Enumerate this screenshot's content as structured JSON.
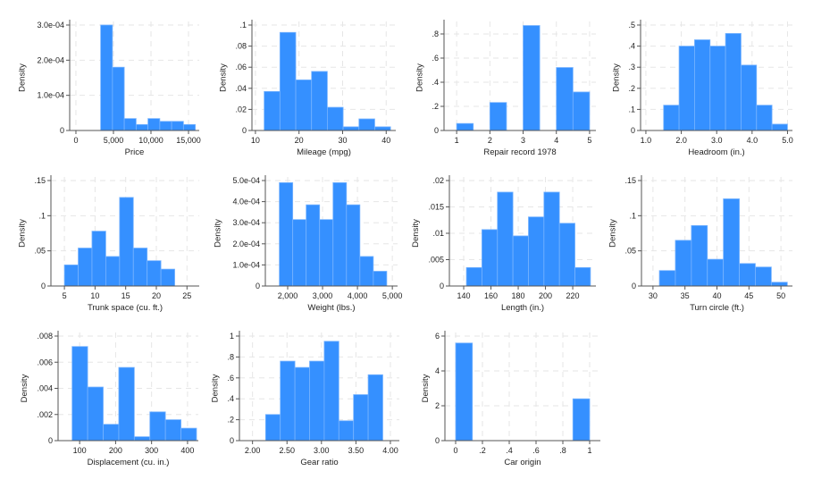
{
  "chart_data": [
    {
      "type": "bar",
      "xlabel": "Price",
      "ylabel": "Density",
      "bin_start": 3291,
      "bin_width": 1577,
      "densities": [
        0.0003,
        0.00018,
        3.4e-05,
        1.7e-05,
        3.4e-05,
        2.6e-05,
        2.6e-05,
        1.7e-05
      ],
      "xlim": [
        -830,
        16430
      ],
      "ylim": [
        0,
        0.0003
      ],
      "xticks": [
        {
          "v": 0,
          "label": "0"
        },
        {
          "v": 5000,
          "label": "5,000"
        },
        {
          "v": 10000,
          "label": "10,000"
        },
        {
          "v": 15000,
          "label": "15,000"
        }
      ],
      "yticks": [
        {
          "v": 0,
          "label": "0"
        },
        {
          "v": 0.0001,
          "label": "1.0e-04"
        },
        {
          "v": 0.0002,
          "label": "2.0e-04"
        },
        {
          "v": 0.0003,
          "label": "3.0e-04"
        }
      ]
    },
    {
      "type": "bar",
      "xlabel": "Mileage (mpg)",
      "ylabel": "Density",
      "bin_start": 12,
      "bin_width": 3.625,
      "densities": [
        0.037,
        0.093,
        0.048,
        0.056,
        0.022,
        0.0035,
        0.011,
        0.0035
      ],
      "xlim": [
        9.2,
        42.2
      ],
      "ylim": [
        0,
        0.1
      ],
      "xticks": [
        {
          "v": 10,
          "label": "10"
        },
        {
          "v": 20,
          "label": "20"
        },
        {
          "v": 30,
          "label": "30"
        },
        {
          "v": 40,
          "label": "40"
        }
      ],
      "yticks": [
        {
          "v": 0,
          "label": "0"
        },
        {
          "v": 0.02,
          "label": ".02"
        },
        {
          "v": 0.04,
          "label": ".04"
        },
        {
          "v": 0.06,
          "label": ".06"
        },
        {
          "v": 0.08,
          "label": ".08"
        },
        {
          "v": 0.1,
          "label": ".1"
        }
      ]
    },
    {
      "type": "bar",
      "xlabel": "Repair record 1978",
      "ylabel": "Density",
      "bin_start": 1,
      "bin_width": 0.5,
      "densities": [
        0.058,
        0,
        0.232,
        0,
        0.87,
        0,
        0.522,
        0.319
      ],
      "xlim": [
        0.62,
        5.19
      ],
      "ylim": [
        0,
        0.874
      ],
      "xticks": [
        {
          "v": 1,
          "label": "1"
        },
        {
          "v": 2,
          "label": "2"
        },
        {
          "v": 3,
          "label": "3"
        },
        {
          "v": 4,
          "label": "4"
        },
        {
          "v": 5,
          "label": "5"
        }
      ],
      "yticks": [
        {
          "v": 0,
          "label": "0"
        },
        {
          "v": 0.2,
          "label": ".2"
        },
        {
          "v": 0.4,
          "label": ".4"
        },
        {
          "v": 0.6,
          "label": ".6"
        },
        {
          "v": 0.8,
          "label": ".8"
        }
      ]
    },
    {
      "type": "bar",
      "xlabel": "Headroom (in.)",
      "ylabel": "Density",
      "bin_start": 1.5,
      "bin_width": 0.4375,
      "densities": [
        0.12,
        0.4,
        0.43,
        0.4,
        0.46,
        0.31,
        0.12,
        0.03
      ],
      "xlim": [
        0.85,
        5.14
      ],
      "ylim": [
        0,
        0.5
      ],
      "xticks": [
        {
          "v": 1,
          "label": "1.0"
        },
        {
          "v": 2,
          "label": "2.0"
        },
        {
          "v": 3,
          "label": "3.0"
        },
        {
          "v": 4,
          "label": "4.0"
        },
        {
          "v": 5,
          "label": "5.0"
        }
      ],
      "yticks": [
        {
          "v": 0,
          "label": "0"
        },
        {
          "v": 0.1,
          "label": ".1"
        },
        {
          "v": 0.2,
          "label": ".2"
        },
        {
          "v": 0.3,
          "label": ".3"
        },
        {
          "v": 0.4,
          "label": ".4"
        },
        {
          "v": 0.5,
          "label": ".5"
        }
      ]
    },
    {
      "type": "bar",
      "xlabel": "Trunk space (cu. ft.)",
      "ylabel": "Density",
      "bin_start": 5,
      "bin_width": 2.25,
      "densities": [
        0.03,
        0.054,
        0.078,
        0.042,
        0.126,
        0.054,
        0.036,
        0.024
      ],
      "xlim": [
        2.8,
        27
      ],
      "ylim": [
        0,
        0.15
      ],
      "xticks": [
        {
          "v": 5,
          "label": "5"
        },
        {
          "v": 10,
          "label": "10"
        },
        {
          "v": 15,
          "label": "15"
        },
        {
          "v": 20,
          "label": "20"
        },
        {
          "v": 25,
          "label": "25"
        }
      ],
      "yticks": [
        {
          "v": 0,
          "label": "0"
        },
        {
          "v": 0.05,
          "label": ".05"
        },
        {
          "v": 0.1,
          "label": ".1"
        },
        {
          "v": 0.15,
          "label": ".15"
        }
      ]
    },
    {
      "type": "bar",
      "xlabel": "Weight (lbs.)",
      "ylabel": "Density",
      "bin_start": 1760,
      "bin_width": 385,
      "densities": [
        0.00049,
        0.000315,
        0.000385,
        0.000315,
        0.00049,
        0.000385,
        0.00014,
        7e-05
      ],
      "xlim": [
        1360,
        5150
      ],
      "ylim": [
        0,
        0.0005
      ],
      "xticks": [
        {
          "v": 2000,
          "label": "2,000"
        },
        {
          "v": 3000,
          "label": "3,000"
        },
        {
          "v": 4000,
          "label": "4,000"
        },
        {
          "v": 5000,
          "label": "5,000"
        }
      ],
      "yticks": [
        {
          "v": 0,
          "label": "0"
        },
        {
          "v": 0.0001,
          "label": "1.0e-04"
        },
        {
          "v": 0.0002,
          "label": "2.0e-04"
        },
        {
          "v": 0.0003,
          "label": "3.0e-04"
        },
        {
          "v": 0.0004,
          "label": "4.0e-04"
        },
        {
          "v": 0.0005,
          "label": "5.0e-04"
        }
      ]
    },
    {
      "type": "bar",
      "xlabel": "Length (in.)",
      "ylabel": "Density",
      "bin_start": 142,
      "bin_width": 11.375,
      "densities": [
        0.0035,
        0.0107,
        0.0178,
        0.0095,
        0.0131,
        0.0178,
        0.0119,
        0.0035
      ],
      "xlim": [
        129.5,
        237
      ],
      "ylim": [
        0,
        0.02
      ],
      "xticks": [
        {
          "v": 140,
          "label": "140"
        },
        {
          "v": 160,
          "label": "160"
        },
        {
          "v": 180,
          "label": "180"
        },
        {
          "v": 200,
          "label": "200"
        },
        {
          "v": 220,
          "label": "220"
        }
      ],
      "yticks": [
        {
          "v": 0,
          "label": "0"
        },
        {
          "v": 0.005,
          "label": ".005"
        },
        {
          "v": 0.01,
          "label": ".01"
        },
        {
          "v": 0.015,
          "label": ".015"
        },
        {
          "v": 0.02,
          "label": ".02"
        }
      ]
    },
    {
      "type": "bar",
      "xlabel": "Turn circle (ft.)",
      "ylabel": "Density",
      "bin_start": 31,
      "bin_width": 2.5,
      "densities": [
        0.022,
        0.065,
        0.086,
        0.038,
        0.124,
        0.032,
        0.027,
        0.0054
      ],
      "xlim": [
        28.2,
        51.8
      ],
      "ylim": [
        0,
        0.15
      ],
      "xticks": [
        {
          "v": 30,
          "label": "30"
        },
        {
          "v": 35,
          "label": "35"
        },
        {
          "v": 40,
          "label": "40"
        },
        {
          "v": 45,
          "label": "45"
        },
        {
          "v": 50,
          "label": "50"
        }
      ],
      "yticks": [
        {
          "v": 0,
          "label": "0"
        },
        {
          "v": 0.05,
          "label": ".05"
        },
        {
          "v": 0.1,
          "label": ".1"
        },
        {
          "v": 0.15,
          "label": ".15"
        }
      ]
    },
    {
      "type": "bar",
      "xlabel": "Displacement (cu. in.)",
      "ylabel": "Density",
      "bin_start": 79,
      "bin_width": 43.25,
      "densities": [
        0.0072,
        0.0041,
        0.00125,
        0.0056,
        0.0003,
        0.0022,
        0.0016,
        0.00095
      ],
      "xlim": [
        40,
        430
      ],
      "ylim": [
        0,
        0.008
      ],
      "xticks": [
        {
          "v": 100,
          "label": "100"
        },
        {
          "v": 200,
          "label": "200"
        },
        {
          "v": 300,
          "label": "300"
        },
        {
          "v": 400,
          "label": "400"
        }
      ],
      "yticks": [
        {
          "v": 0,
          "label": "0"
        },
        {
          "v": 0.002,
          "label": ".002"
        },
        {
          "v": 0.004,
          "label": ".004"
        },
        {
          "v": 0.006,
          "label": ".006"
        },
        {
          "v": 0.008,
          "label": ".008"
        }
      ]
    },
    {
      "type": "bar",
      "xlabel": "Gear ratio",
      "ylabel": "Density",
      "bin_start": 2.19,
      "bin_width": 0.2125,
      "densities": [
        0.25,
        0.76,
        0.7,
        0.76,
        0.95,
        0.19,
        0.44,
        0.63
      ],
      "xlim": [
        1.81,
        4.13
      ],
      "ylim": [
        0,
        1
      ],
      "xticks": [
        {
          "v": 2,
          "label": "2.00"
        },
        {
          "v": 2.5,
          "label": "2.50"
        },
        {
          "v": 3,
          "label": "3.00"
        },
        {
          "v": 3.5,
          "label": "3.50"
        },
        {
          "v": 4,
          "label": "4.00"
        }
      ],
      "yticks": [
        {
          "v": 0,
          "label": "0"
        },
        {
          "v": 0.2,
          "label": ".2"
        },
        {
          "v": 0.4,
          "label": ".4"
        },
        {
          "v": 0.6,
          "label": ".6"
        },
        {
          "v": 0.8,
          "label": ".8"
        },
        {
          "v": 1,
          "label": "1"
        }
      ]
    },
    {
      "type": "bar",
      "xlabel": "Car origin",
      "ylabel": "Density",
      "bin_start": 0,
      "bin_width": 0.125,
      "densities": [
        5.6,
        0,
        0,
        0,
        0,
        0,
        0,
        2.4
      ],
      "xlim": [
        -0.08,
        1.08
      ],
      "ylim": [
        0,
        6
      ],
      "xticks": [
        {
          "v": 0,
          "label": "0"
        },
        {
          "v": 0.2,
          "label": ".2"
        },
        {
          "v": 0.4,
          "label": ".4"
        },
        {
          "v": 0.6,
          "label": ".6"
        },
        {
          "v": 0.8,
          "label": ".8"
        },
        {
          "v": 1,
          "label": "1"
        }
      ],
      "yticks": [
        {
          "v": 0,
          "label": "0"
        },
        {
          "v": 2,
          "label": "2"
        },
        {
          "v": 4,
          "label": "4"
        },
        {
          "v": 6,
          "label": "6"
        }
      ]
    }
  ],
  "colors": {
    "bar": "#3590ff",
    "bar_edge": "#78b4ff",
    "grid": "#e6e6e6",
    "axis": "#555555"
  }
}
